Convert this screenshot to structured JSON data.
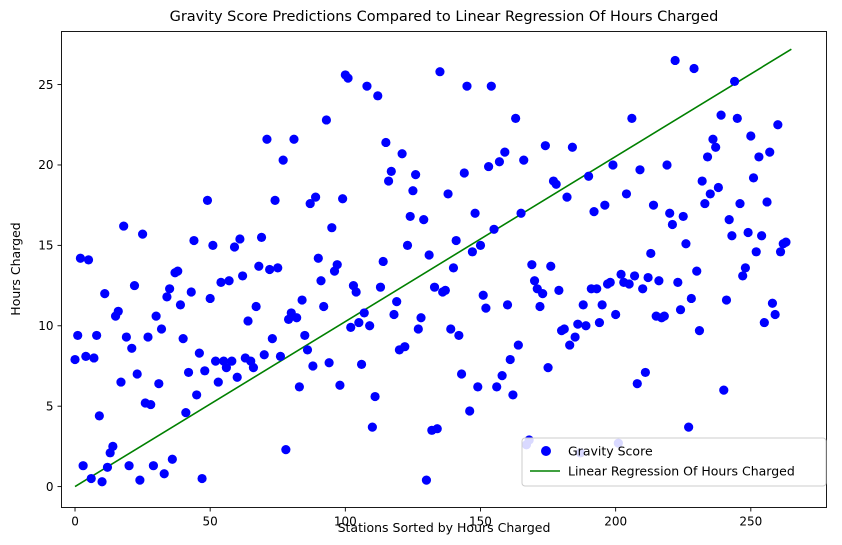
{
  "chart_data": {
    "type": "scatter",
    "title": "Gravity Score Predictions Compared to Linear Regression Of Hours Charged",
    "xlabel": "Stations Sorted by Hours Charged",
    "ylabel": "Hours Charged",
    "xlim": [
      -5,
      278
    ],
    "ylim": [
      -1.3,
      28.3
    ],
    "xticks": [
      0,
      50,
      100,
      150,
      200,
      250
    ],
    "yticks": [
      0,
      5,
      10,
      15,
      20,
      25
    ],
    "grid": false,
    "legend_position": "lower-right",
    "series": [
      {
        "name": "Gravity Score",
        "kind": "scatter",
        "color": "#0000ff",
        "points": [
          [
            0,
            7.9
          ],
          [
            1,
            9.4
          ],
          [
            2,
            14.2
          ],
          [
            3,
            1.3
          ],
          [
            4,
            8.1
          ],
          [
            5,
            14.1
          ],
          [
            6,
            0.5
          ],
          [
            7,
            8.0
          ],
          [
            8,
            9.4
          ],
          [
            9,
            4.4
          ],
          [
            10,
            0.3
          ],
          [
            11,
            12.0
          ],
          [
            12,
            1.2
          ],
          [
            13,
            2.1
          ],
          [
            14,
            2.5
          ],
          [
            15,
            10.6
          ],
          [
            16,
            10.9
          ],
          [
            17,
            6.5
          ],
          [
            18,
            16.2
          ],
          [
            19,
            9.3
          ],
          [
            20,
            1.3
          ],
          [
            21,
            8.6
          ],
          [
            22,
            12.5
          ],
          [
            23,
            7.0
          ],
          [
            24,
            0.4
          ],
          [
            25,
            15.7
          ],
          [
            26,
            5.2
          ],
          [
            27,
            9.3
          ],
          [
            28,
            5.1
          ],
          [
            29,
            1.3
          ],
          [
            30,
            10.6
          ],
          [
            31,
            6.4
          ],
          [
            32,
            9.8
          ],
          [
            33,
            0.8
          ],
          [
            34,
            11.8
          ],
          [
            35,
            12.3
          ],
          [
            36,
            1.7
          ],
          [
            37,
            13.3
          ],
          [
            38,
            13.4
          ],
          [
            39,
            11.3
          ],
          [
            40,
            9.2
          ],
          [
            41,
            4.6
          ],
          [
            42,
            7.1
          ],
          [
            43,
            12.1
          ],
          [
            44,
            15.3
          ],
          [
            45,
            5.7
          ],
          [
            46,
            8.3
          ],
          [
            47,
            0.5
          ],
          [
            48,
            7.2
          ],
          [
            49,
            17.8
          ],
          [
            50,
            11.7
          ],
          [
            51,
            15.0
          ],
          [
            52,
            7.8
          ],
          [
            53,
            6.5
          ],
          [
            54,
            12.7
          ],
          [
            55,
            7.8
          ],
          [
            56,
            7.4
          ],
          [
            57,
            12.8
          ],
          [
            58,
            7.8
          ],
          [
            59,
            14.9
          ],
          [
            60,
            6.8
          ],
          [
            61,
            15.4
          ],
          [
            62,
            13.1
          ],
          [
            63,
            8.0
          ],
          [
            64,
            10.3
          ],
          [
            65,
            7.8
          ],
          [
            66,
            7.4
          ],
          [
            67,
            11.2
          ],
          [
            68,
            13.7
          ],
          [
            69,
            15.5
          ],
          [
            70,
            8.2
          ],
          [
            71,
            21.6
          ],
          [
            72,
            13.5
          ],
          [
            73,
            9.2
          ],
          [
            74,
            17.8
          ],
          [
            75,
            13.6
          ],
          [
            76,
            8.1
          ],
          [
            77,
            20.3
          ],
          [
            78,
            2.3
          ],
          [
            79,
            10.4
          ],
          [
            80,
            10.8
          ],
          [
            81,
            21.6
          ],
          [
            82,
            10.5
          ],
          [
            83,
            6.2
          ],
          [
            84,
            11.6
          ],
          [
            85,
            9.4
          ],
          [
            86,
            8.5
          ],
          [
            87,
            17.6
          ],
          [
            88,
            7.5
          ],
          [
            89,
            18.0
          ],
          [
            90,
            14.2
          ],
          [
            91,
            12.8
          ],
          [
            92,
            11.2
          ],
          [
            93,
            22.8
          ],
          [
            94,
            7.7
          ],
          [
            95,
            16.1
          ],
          [
            96,
            13.4
          ],
          [
            97,
            13.8
          ],
          [
            98,
            6.3
          ],
          [
            99,
            17.9
          ],
          [
            100,
            25.6
          ],
          [
            101,
            25.4
          ],
          [
            102,
            9.9
          ],
          [
            103,
            12.5
          ],
          [
            104,
            12.1
          ],
          [
            105,
            10.2
          ],
          [
            106,
            7.6
          ],
          [
            107,
            10.8
          ],
          [
            108,
            24.9
          ],
          [
            109,
            10.0
          ],
          [
            110,
            3.7
          ],
          [
            111,
            5.6
          ],
          [
            112,
            24.3
          ],
          [
            113,
            12.4
          ],
          [
            114,
            14.0
          ],
          [
            115,
            21.4
          ],
          [
            116,
            19.0
          ],
          [
            117,
            19.6
          ],
          [
            118,
            10.7
          ],
          [
            119,
            11.5
          ],
          [
            120,
            8.5
          ],
          [
            121,
            20.7
          ],
          [
            122,
            8.7
          ],
          [
            123,
            15.0
          ],
          [
            124,
            16.8
          ],
          [
            125,
            18.4
          ],
          [
            126,
            19.4
          ],
          [
            127,
            9.8
          ],
          [
            128,
            10.5
          ],
          [
            129,
            16.6
          ],
          [
            130,
            0.4
          ],
          [
            131,
            14.4
          ],
          [
            132,
            3.5
          ],
          [
            133,
            12.4
          ],
          [
            134,
            3.6
          ],
          [
            135,
            25.8
          ],
          [
            136,
            12.1
          ],
          [
            137,
            12.2
          ],
          [
            138,
            18.2
          ],
          [
            139,
            9.8
          ],
          [
            140,
            13.6
          ],
          [
            141,
            15.3
          ],
          [
            142,
            9.4
          ],
          [
            143,
            7.0
          ],
          [
            144,
            19.5
          ],
          [
            145,
            24.9
          ],
          [
            146,
            4.7
          ],
          [
            147,
            14.6
          ],
          [
            148,
            17.0
          ],
          [
            149,
            6.2
          ],
          [
            150,
            15.0
          ],
          [
            151,
            11.9
          ],
          [
            152,
            11.1
          ],
          [
            153,
            19.9
          ],
          [
            154,
            24.9
          ],
          [
            155,
            16.0
          ],
          [
            156,
            6.2
          ],
          [
            157,
            20.2
          ],
          [
            158,
            6.9
          ],
          [
            159,
            20.8
          ],
          [
            160,
            11.3
          ],
          [
            161,
            7.9
          ],
          [
            162,
            5.7
          ],
          [
            163,
            22.9
          ],
          [
            164,
            8.8
          ],
          [
            165,
            17.0
          ],
          [
            166,
            20.3
          ],
          [
            167,
            2.6
          ],
          [
            168,
            2.9
          ],
          [
            169,
            13.8
          ],
          [
            170,
            12.8
          ],
          [
            171,
            12.3
          ],
          [
            172,
            11.2
          ],
          [
            173,
            12.0
          ],
          [
            174,
            21.2
          ],
          [
            175,
            7.4
          ],
          [
            176,
            13.7
          ],
          [
            177,
            19.0
          ],
          [
            178,
            18.8
          ],
          [
            179,
            12.2
          ],
          [
            180,
            9.7
          ],
          [
            181,
            9.8
          ],
          [
            182,
            18.0
          ],
          [
            183,
            8.8
          ],
          [
            184,
            21.1
          ],
          [
            185,
            9.3
          ],
          [
            186,
            10.1
          ],
          [
            187,
            2.1
          ],
          [
            188,
            11.3
          ],
          [
            189,
            10.0
          ],
          [
            190,
            19.3
          ],
          [
            191,
            12.3
          ],
          [
            192,
            17.1
          ],
          [
            193,
            12.3
          ],
          [
            194,
            10.2
          ],
          [
            195,
            11.3
          ],
          [
            196,
            17.5
          ],
          [
            197,
            12.6
          ],
          [
            198,
            12.7
          ],
          [
            199,
            20.0
          ],
          [
            200,
            10.7
          ],
          [
            201,
            2.7
          ],
          [
            202,
            13.2
          ],
          [
            203,
            12.7
          ],
          [
            204,
            18.2
          ],
          [
            205,
            12.6
          ],
          [
            206,
            22.9
          ],
          [
            207,
            13.1
          ],
          [
            208,
            6.4
          ],
          [
            209,
            19.7
          ],
          [
            210,
            12.3
          ],
          [
            211,
            7.1
          ],
          [
            212,
            13.0
          ],
          [
            213,
            14.5
          ],
          [
            214,
            17.5
          ],
          [
            215,
            10.6
          ],
          [
            216,
            12.8
          ],
          [
            217,
            10.5
          ],
          [
            218,
            10.6
          ],
          [
            219,
            20.0
          ],
          [
            220,
            17.0
          ],
          [
            221,
            16.3
          ],
          [
            222,
            26.5
          ],
          [
            223,
            12.7
          ],
          [
            224,
            11.0
          ],
          [
            225,
            16.8
          ],
          [
            226,
            15.1
          ],
          [
            227,
            3.7
          ],
          [
            228,
            11.7
          ],
          [
            229,
            26.0
          ],
          [
            230,
            13.4
          ],
          [
            231,
            9.7
          ],
          [
            232,
            19.0
          ],
          [
            233,
            17.6
          ],
          [
            234,
            20.5
          ],
          [
            235,
            18.2
          ],
          [
            236,
            21.6
          ],
          [
            237,
            21.1
          ],
          [
            238,
            18.6
          ],
          [
            239,
            23.1
          ],
          [
            240,
            6.0
          ],
          [
            241,
            11.6
          ],
          [
            242,
            16.6
          ],
          [
            243,
            15.6
          ],
          [
            244,
            25.2
          ],
          [
            245,
            22.9
          ],
          [
            246,
            17.6
          ],
          [
            247,
            13.1
          ],
          [
            248,
            13.6
          ],
          [
            249,
            15.8
          ],
          [
            250,
            21.8
          ],
          [
            251,
            19.2
          ],
          [
            252,
            14.6
          ],
          [
            253,
            20.5
          ],
          [
            254,
            15.6
          ],
          [
            255,
            10.2
          ],
          [
            256,
            17.7
          ],
          [
            257,
            20.8
          ],
          [
            258,
            11.4
          ],
          [
            259,
            10.7
          ],
          [
            260,
            22.5
          ],
          [
            261,
            14.6
          ],
          [
            262,
            15.1
          ],
          [
            263,
            15.2
          ]
        ]
      },
      {
        "name": "Linear Regression Of Hours Charged",
        "kind": "line",
        "color": "#008000",
        "points": [
          [
            0,
            0.0
          ],
          [
            265,
            27.2
          ]
        ]
      }
    ]
  }
}
